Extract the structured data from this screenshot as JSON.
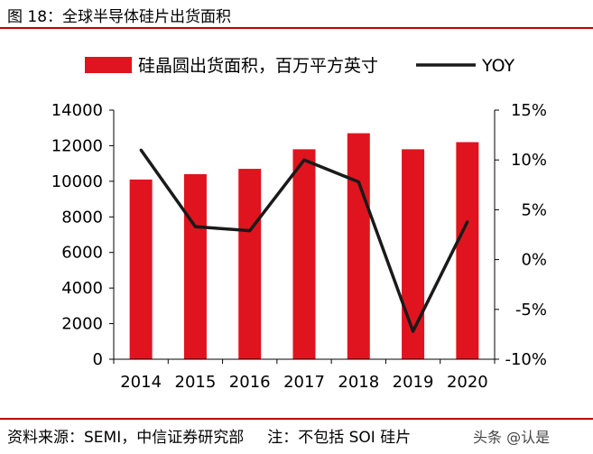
{
  "figure": {
    "title": "图 18：全球半导体硅片出货面积",
    "source": "资料来源：SEMI，中信证券研究部",
    "note": "注：不包括 SOI 硅片",
    "watermark": "头条 @认是"
  },
  "colors": {
    "bar": "#e0141e",
    "line": "#1a1a1a",
    "accent_rule": "#c00000"
  },
  "chart_data": {
    "type": "bar",
    "categories": [
      "2014",
      "2015",
      "2016",
      "2017",
      "2018",
      "2019",
      "2020"
    ],
    "series": [
      {
        "name": "硅晶圆出货面积，百万平方英寸",
        "type": "bar",
        "axis": "left",
        "values": [
          10100,
          10400,
          10700,
          11800,
          12700,
          11800,
          12200
        ]
      },
      {
        "name": "YOY",
        "type": "line",
        "axis": "right",
        "unit": "%",
        "values": [
          11.0,
          3.3,
          2.9,
          10.0,
          7.8,
          -7.2,
          3.8
        ]
      }
    ],
    "y_left": {
      "min": 0,
      "max": 14000,
      "step": 2000,
      "ticks": [
        "0",
        "2000",
        "4000",
        "6000",
        "8000",
        "10000",
        "12000",
        "14000"
      ]
    },
    "y_right": {
      "min": -10,
      "max": 15,
      "step": 5,
      "ticks": [
        "-10%",
        "-5%",
        "0%",
        "5%",
        "10%",
        "15%"
      ]
    },
    "legend": {
      "position": "top"
    },
    "grid": false
  }
}
